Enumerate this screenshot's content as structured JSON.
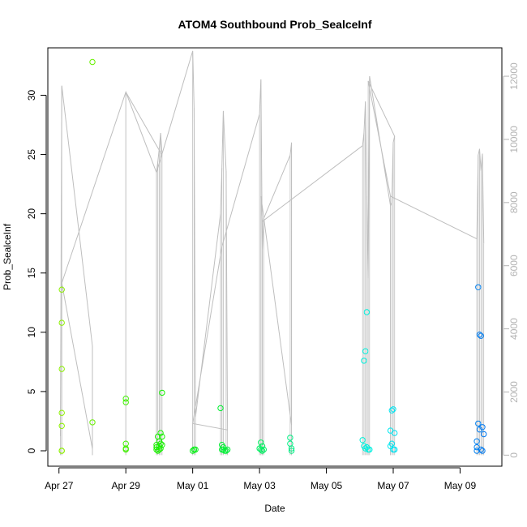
{
  "chart_data": {
    "type": "scatter",
    "title": "ATOM4 Southbound Prob_SealceInf",
    "xlabel": "Date",
    "ylabel": "Prob_SealceInf",
    "x_ticks": [
      "Apr 27",
      "Apr 29",
      "May 01",
      "May 03",
      "May 05",
      "May 07",
      "May 09"
    ],
    "y_ticks": [
      0,
      5,
      10,
      15,
      20,
      25,
      30
    ],
    "y2_ticks": [
      0,
      2000,
      4000,
      6000,
      8000,
      10000,
      12000
    ],
    "xlim": [
      "2021-04-26T16:00",
      "2021-05-10T06:00"
    ],
    "ylim": [
      -1.3,
      34.0
    ],
    "y2lim": [
      -350,
      12900
    ],
    "colors": {
      "secondary_line": "#bebebe",
      "right_axis": "#b3b3b3"
    },
    "points_series": {
      "name": "",
      "x": [
        "2021-04-27T02:00",
        "2021-04-27T02:00",
        "2021-04-27T02:00",
        "2021-04-27T02:00",
        "2021-04-27T02:00",
        "2021-04-27T02:00",
        "2021-04-27T02:00",
        "2021-04-28T00:00",
        "2021-04-28T00:00",
        "2021-04-29T00:00",
        "2021-04-29T00:00",
        "2021-04-29T00:00",
        "2021-04-29T00:00",
        "2021-04-29T00:00",
        "2021-04-29T22:00",
        "2021-04-29T22:00",
        "2021-04-29T22:00",
        "2021-04-29T23:00",
        "2021-04-29T23:00",
        "2021-04-30T00:00",
        "2021-04-30T00:00",
        "2021-04-30T00:00",
        "2021-04-30T01:00",
        "2021-04-30T01:00",
        "2021-04-30T01:00",
        "2021-04-30T02:00",
        "2021-04-30T02:00",
        "2021-04-30T02:00",
        "2021-05-01T00:00",
        "2021-05-01T01:00",
        "2021-05-01T02:00",
        "2021-05-01T20:00",
        "2021-05-01T21:00",
        "2021-05-01T21:00",
        "2021-05-01T22:00",
        "2021-05-01T22:00",
        "2021-05-01T23:00",
        "2021-05-02T00:00",
        "2021-05-02T01:00",
        "2021-05-03T00:00",
        "2021-05-03T01:00",
        "2021-05-03T01:00",
        "2021-05-03T02:00",
        "2021-05-03T02:00",
        "2021-05-03T03:00",
        "2021-05-03T22:00",
        "2021-05-03T22:00",
        "2021-05-03T23:00",
        "2021-05-03T23:00",
        "2021-05-06T02:00",
        "2021-05-06T03:00",
        "2021-05-06T03:00",
        "2021-05-06T04:00",
        "2021-05-06T04:00",
        "2021-05-06T05:00",
        "2021-05-06T05:00",
        "2021-05-06T06:00",
        "2021-05-06T07:00",
        "2021-05-06T22:00",
        "2021-05-06T22:00",
        "2021-05-06T23:00",
        "2021-05-06T23:00",
        "2021-05-07T00:00",
        "2021-05-07T00:00",
        "2021-05-07T01:00",
        "2021-05-07T01:00",
        "2021-05-09T12:00",
        "2021-05-09T12:00",
        "2021-05-09T12:00",
        "2021-05-09T13:00",
        "2021-05-09T13:00",
        "2021-05-09T14:00",
        "2021-05-09T14:00",
        "2021-05-09T15:00",
        "2021-05-09T15:00",
        "2021-05-09T16:00",
        "2021-05-09T16:00",
        "2021-05-09T17:00"
      ],
      "y": [
        13.6,
        10.8,
        6.9,
        3.2,
        2.1,
        0.0,
        0.0,
        32.8,
        2.4,
        4.4,
        4.1,
        0.6,
        0.2,
        0.1,
        0.5,
        0.3,
        0.1,
        1.2,
        0.0,
        0.8,
        0.4,
        0.1,
        1.5,
        0.6,
        0.2,
        4.9,
        1.2,
        0.5,
        0.0,
        0.1,
        0.1,
        3.6,
        0.5,
        0.1,
        0.3,
        0.1,
        0.0,
        0.0,
        0.1,
        0.2,
        0.7,
        0.1,
        0.4,
        0.0,
        0.1,
        1.1,
        0.6,
        0.2,
        0.0,
        0.9,
        7.6,
        0.4,
        8.4,
        0.2,
        11.7,
        0.3,
        0.1,
        0.1,
        1.7,
        0.4,
        3.4,
        0.6,
        3.5,
        0.1,
        1.5,
        0.1,
        0.3,
        0.8,
        0.0,
        2.3,
        13.8,
        9.8,
        1.8,
        0.1,
        9.7,
        0.0,
        2.0,
        1.4
      ]
    },
    "line_series": {
      "name": "",
      "x": [
        "2021-04-27T01:00",
        "2021-04-27T02:00",
        "2021-04-28T00:00",
        "2021-04-28T00:00",
        "2021-04-27T02:00",
        "2021-04-29T00:00",
        "2021-04-29T22:00",
        "2021-04-29T23:00",
        "2021-04-30T00:00",
        "2021-04-30T01:00",
        "2021-04-30T02:00",
        "2021-04-29T00:00",
        "2021-04-29T22:00",
        "2021-05-01T00:00",
        "2021-05-01T01:00",
        "2021-05-01T02:00",
        "2021-05-01T20:00",
        "2021-05-01T21:00",
        "2021-05-01T22:00",
        "2021-05-02T00:00",
        "2021-05-02T01:00",
        "2021-05-01T00:00",
        "2021-05-01T21:00",
        "2021-05-03T00:00",
        "2021-05-03T01:00",
        "2021-05-03T02:00",
        "2021-05-03T03:00",
        "2021-05-03T22:00",
        "2021-05-03T23:00",
        "2021-05-03T23:00",
        "2021-05-03T01:00",
        "2021-05-03T02:00",
        "2021-05-06T02:00",
        "2021-05-06T03:00",
        "2021-05-06T04:00",
        "2021-05-06T05:00",
        "2021-05-06T06:00",
        "2021-05-06T07:00",
        "2021-05-06T22:00",
        "2021-05-06T23:00",
        "2021-05-07T00:00",
        "2021-05-07T01:00",
        "2021-05-06T06:00",
        "2021-05-06T22:00",
        "2021-05-09T12:00",
        "2021-05-09T13:00",
        "2021-05-09T14:00",
        "2021-05-09T15:00",
        "2021-05-09T16:00",
        "2021-05-09T17:00"
      ],
      "y": [
        600,
        11700,
        3450,
        200,
        5450,
        11500,
        8950,
        9300,
        9700,
        10200,
        9500,
        11500,
        8950,
        12800,
        11000,
        1200,
        7650,
        9100,
        10900,
        9000,
        800,
        1000,
        6600,
        10800,
        11900,
        6500,
        7500,
        9500,
        9900,
        950,
        8200,
        7400,
        9800,
        10200,
        11200,
        8200,
        5600,
        12000,
        7900,
        8000,
        9900,
        10100,
        11850,
        8200,
        6850,
        9500,
        9700,
        9000,
        9550,
        6700
      ]
    }
  }
}
